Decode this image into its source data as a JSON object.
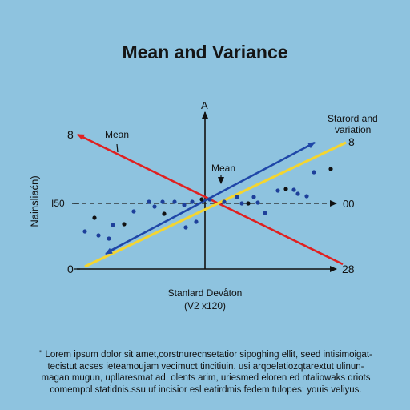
{
  "title": "Mean and Variance",
  "axis_y_top_label": "A",
  "y_axis_label": "Nainsliaćn)",
  "label_mean_left": "Mean",
  "label_mean_center": "Mean",
  "label_sd_line1": "Starord and",
  "label_sd_line2": "variation",
  "left_tick_top": "8",
  "left_tick_mid": "I50",
  "left_tick_bottom": "0",
  "right_tick_top": "8",
  "right_tick_mid": "00",
  "right_tick_bottom": "28",
  "x_caption_line1": "Stanlard Devåton",
  "x_caption_line2": "(V2 x120)",
  "paragraph_lines": [
    "\" Lorem ipsum dolor sit amet,corstnurecnsetatior sipoghing ellit, seed intisimoigat-",
    "tecistut acses ieteamoujam vecimuct tincitiuin. usi arqoelatiozqtarextut ulinun-",
    "magan mugun, upllaresmat ad, olents arim, uriesmed eloren ed ntaliowaks driots",
    "comempol statidnis.ssu,uf incisior esl eatirdmis fedem tulopes: youis veliyus."
  ],
  "colors": {
    "background": "#8ec3df",
    "red_line": "#e02020",
    "blue_line": "#1f47a8",
    "yellow_line": "#f4d531",
    "points": "#1d3f9a"
  },
  "chart_data": {
    "type": "scatter",
    "note_lines": [
      "red descending arrow",
      "blue ascending arrow",
      "yellow ascending line"
    ],
    "points": [
      [
        118,
        272
      ],
      [
        106,
        289
      ],
      [
        123,
        294
      ],
      [
        136,
        298
      ],
      [
        141,
        281
      ],
      [
        155,
        280
      ],
      [
        167,
        264
      ],
      [
        186,
        252
      ],
      [
        203,
        252
      ],
      [
        218,
        252
      ],
      [
        205,
        267
      ],
      [
        230,
        256
      ],
      [
        232,
        284
      ],
      [
        245,
        277
      ],
      [
        240,
        252
      ],
      [
        252,
        249
      ],
      [
        262,
        249
      ],
      [
        280,
        252
      ],
      [
        296,
        246
      ],
      [
        302,
        254
      ],
      [
        310,
        254
      ],
      [
        317,
        246
      ],
      [
        322,
        253
      ],
      [
        331,
        266
      ],
      [
        347,
        238
      ],
      [
        357,
        236
      ],
      [
        367,
        237
      ],
      [
        372,
        242
      ],
      [
        383,
        245
      ],
      [
        392,
        215
      ],
      [
        413,
        211
      ],
      [
        193,
        258
      ]
    ]
  }
}
